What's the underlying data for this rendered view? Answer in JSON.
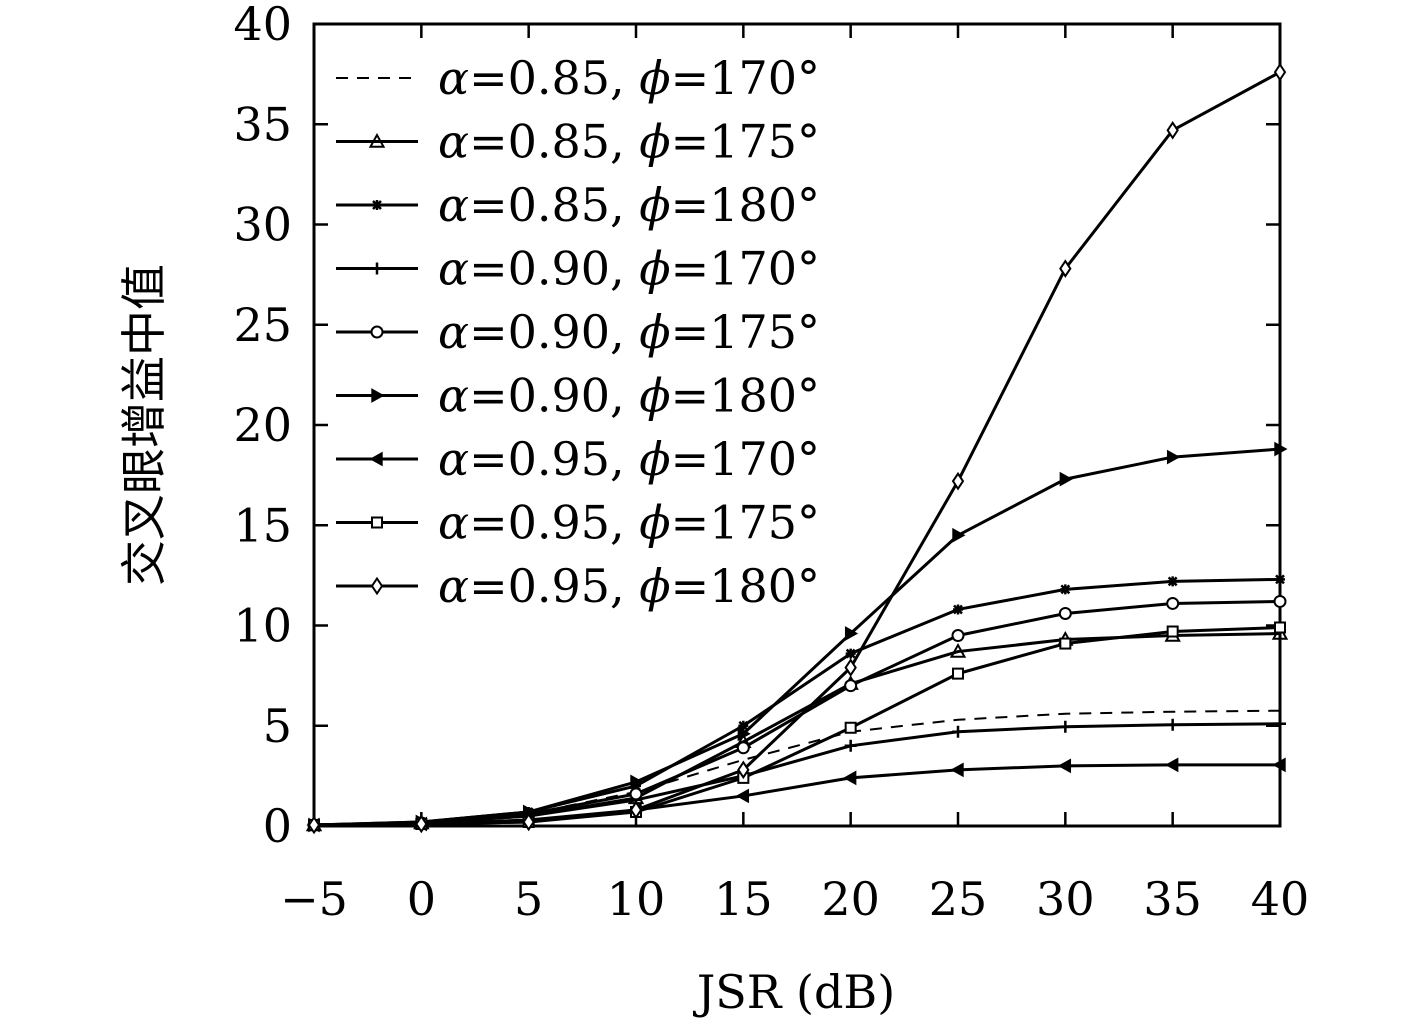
{
  "chart_data": {
    "type": "line",
    "xlabel": "JSR (dB)",
    "ylabel": "交叉眼增益中值",
    "xlim": [
      -5,
      40
    ],
    "ylim": [
      0,
      40
    ],
    "x_ticks": [
      -5,
      0,
      5,
      10,
      15,
      20,
      25,
      30,
      35,
      40
    ],
    "x_tick_labels": [
      "−5",
      "0",
      "5",
      "10",
      "15",
      "20",
      "25",
      "30",
      "35",
      "40"
    ],
    "y_ticks": [
      0,
      5,
      10,
      15,
      20,
      25,
      30,
      35,
      40
    ],
    "y_tick_labels": [
      "0",
      "5",
      "10",
      "15",
      "20",
      "25",
      "30",
      "35",
      "40"
    ],
    "grid": false,
    "legend_position": "top-left",
    "x": [
      -5,
      0,
      5,
      10,
      15,
      20,
      25,
      30,
      35,
      40
    ],
    "series": [
      {
        "alpha": "0.85",
        "phi": "170°",
        "marker": "none",
        "dashed": true,
        "values": [
          0.05,
          0.2,
          0.6,
          1.7,
          3.3,
          4.7,
          5.3,
          5.6,
          5.7,
          5.75
        ]
      },
      {
        "alpha": "0.85",
        "phi": "175°",
        "marker": "triangle-up",
        "dashed": false,
        "values": [
          0.05,
          0.15,
          0.5,
          1.4,
          4.2,
          7.1,
          8.7,
          9.3,
          9.5,
          9.6
        ]
      },
      {
        "alpha": "0.85",
        "phi": "180°",
        "marker": "asterisk",
        "dashed": false,
        "values": [
          0.05,
          0.2,
          0.7,
          2.0,
          5.0,
          8.6,
          10.8,
          11.8,
          12.2,
          12.3
        ]
      },
      {
        "alpha": "0.90",
        "phi": "170°",
        "marker": "plus",
        "dashed": false,
        "values": [
          0.05,
          0.15,
          0.5,
          1.3,
          2.5,
          4.0,
          4.7,
          4.95,
          5.05,
          5.1
        ]
      },
      {
        "alpha": "0.90",
        "phi": "175°",
        "marker": "circle",
        "dashed": false,
        "values": [
          0.05,
          0.15,
          0.6,
          1.6,
          3.9,
          7.0,
          9.5,
          10.6,
          11.1,
          11.2
        ]
      },
      {
        "alpha": "0.90",
        "phi": "180°",
        "marker": "triangle-right",
        "dashed": false,
        "values": [
          0.05,
          0.2,
          0.7,
          2.2,
          4.6,
          9.6,
          14.5,
          17.3,
          18.4,
          18.8
        ]
      },
      {
        "alpha": "0.95",
        "phi": "170°",
        "marker": "triangle-left",
        "dashed": false,
        "values": [
          0.05,
          0.1,
          0.3,
          0.8,
          1.5,
          2.4,
          2.8,
          3.0,
          3.05,
          3.05
        ]
      },
      {
        "alpha": "0.95",
        "phi": "175°",
        "marker": "square",
        "dashed": false,
        "values": [
          0.05,
          0.1,
          0.2,
          0.7,
          2.4,
          4.9,
          7.6,
          9.1,
          9.7,
          9.9
        ]
      },
      {
        "alpha": "0.95",
        "phi": "180°",
        "marker": "diamond",
        "dashed": false,
        "values": [
          0.05,
          0.1,
          0.2,
          0.8,
          2.8,
          7.9,
          17.2,
          27.8,
          34.7,
          37.6
        ]
      }
    ]
  }
}
